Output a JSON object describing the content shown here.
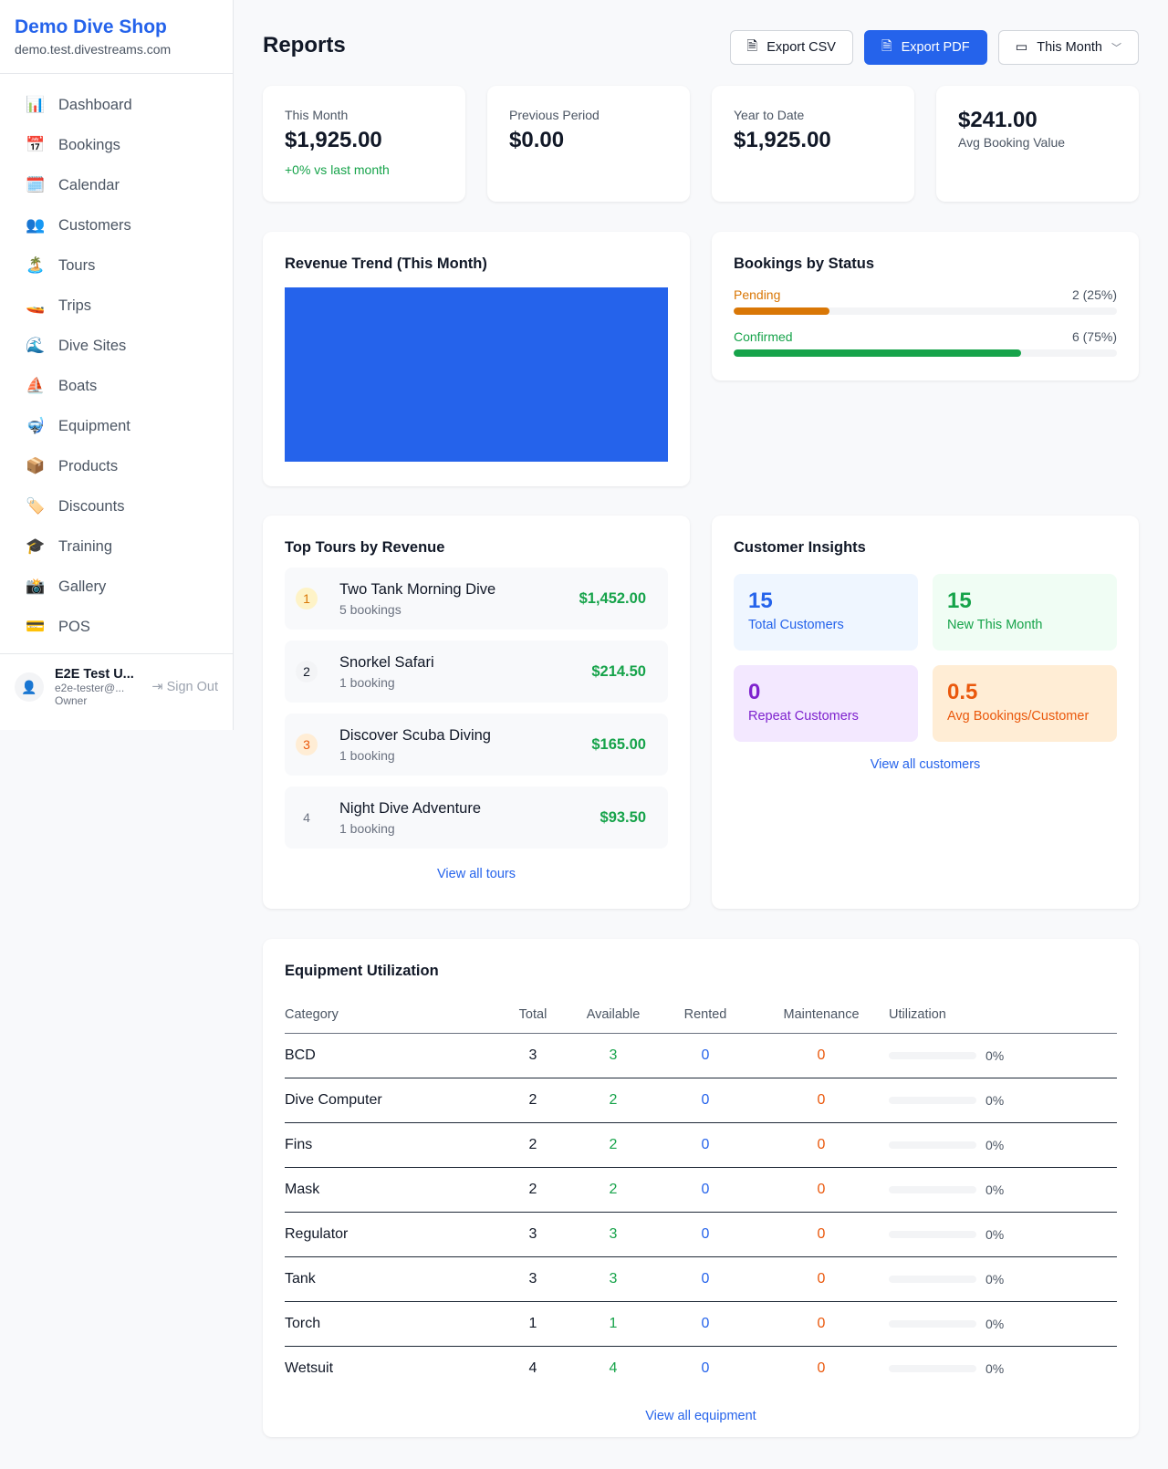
{
  "sidebar": {
    "shop_name": "Demo Dive Shop",
    "shop_domain": "demo.test.divestreams.com",
    "items": [
      {
        "label": "Dashboard",
        "icon": "📊"
      },
      {
        "label": "Bookings",
        "icon": "📅"
      },
      {
        "label": "Calendar",
        "icon": "🗓️"
      },
      {
        "label": "Customers",
        "icon": "👥"
      },
      {
        "label": "Tours",
        "icon": "🏝️"
      },
      {
        "label": "Trips",
        "icon": "🚤"
      },
      {
        "label": "Dive Sites",
        "icon": "🌊"
      },
      {
        "label": "Boats",
        "icon": "⛵"
      },
      {
        "label": "Equipment",
        "icon": "🤿"
      },
      {
        "label": "Products",
        "icon": "📦"
      },
      {
        "label": "Discounts",
        "icon": "🏷️"
      },
      {
        "label": "Training",
        "icon": "🎓"
      },
      {
        "label": "Gallery",
        "icon": "📸"
      },
      {
        "label": "POS",
        "icon": "💳"
      }
    ],
    "user": {
      "name": "E2E Test U...",
      "email": "e2e-tester@...",
      "role": "Owner",
      "sign_out": "Sign Out"
    }
  },
  "header": {
    "title": "Reports",
    "export_csv": "Export CSV",
    "export_pdf": "Export PDF",
    "period": "This Month"
  },
  "stats": [
    {
      "label": "This Month",
      "value": "$1,925.00",
      "change": "+0% vs last month"
    },
    {
      "label": "Previous Period",
      "value": "$0.00"
    },
    {
      "label": "Year to Date",
      "value": "$1,925.00"
    },
    {
      "value": "$241.00",
      "label": "Avg Booking Value"
    }
  ],
  "revenue_trend": {
    "title": "Revenue Trend (This Month)",
    "bar_color": "#2563eb"
  },
  "bookings_status": {
    "title": "Bookings by Status",
    "items": [
      {
        "label": "Pending",
        "count": "2 (25%)",
        "percent": 25,
        "color": "#d97706"
      },
      {
        "label": "Confirmed",
        "count": "6 (75%)",
        "percent": 75,
        "color": "#16a34a"
      }
    ]
  },
  "top_tours": {
    "title": "Top Tours by Revenue",
    "link": "View all tours",
    "items": [
      {
        "rank": "1",
        "name": "Two Tank Morning Dive",
        "bookings": "5 bookings",
        "revenue": "$1,452.00"
      },
      {
        "rank": "2",
        "name": "Snorkel Safari",
        "bookings": "1 booking",
        "revenue": "$214.50"
      },
      {
        "rank": "3",
        "name": "Discover Scuba Diving",
        "bookings": "1 booking",
        "revenue": "$165.00"
      },
      {
        "rank": "4",
        "name": "Night Dive Adventure",
        "bookings": "1 booking",
        "revenue": "$93.50"
      }
    ]
  },
  "customer_insights": {
    "title": "Customer Insights",
    "link": "View all customers",
    "items": [
      {
        "value": "15",
        "label": "Total Customers"
      },
      {
        "value": "15",
        "label": "New This Month"
      },
      {
        "value": "0",
        "label": "Repeat Customers"
      },
      {
        "value": "0.5",
        "label": "Avg Bookings/Customer"
      }
    ]
  },
  "equipment": {
    "title": "Equipment Utilization",
    "link": "View all equipment",
    "columns": [
      "Category",
      "Total",
      "Available",
      "Rented",
      "Maintenance",
      "Utilization"
    ],
    "rows": [
      {
        "category": "BCD",
        "total": "3",
        "available": "3",
        "rented": "0",
        "maintenance": "0",
        "utilization": "0%"
      },
      {
        "category": "Dive Computer",
        "total": "2",
        "available": "2",
        "rented": "0",
        "maintenance": "0",
        "utilization": "0%"
      },
      {
        "category": "Fins",
        "total": "2",
        "available": "2",
        "rented": "0",
        "maintenance": "0",
        "utilization": "0%"
      },
      {
        "category": "Mask",
        "total": "2",
        "available": "2",
        "rented": "0",
        "maintenance": "0",
        "utilization": "0%"
      },
      {
        "category": "Regulator",
        "total": "3",
        "available": "3",
        "rented": "0",
        "maintenance": "0",
        "utilization": "0%"
      },
      {
        "category": "Tank",
        "total": "3",
        "available": "3",
        "rented": "0",
        "maintenance": "0",
        "utilization": "0%"
      },
      {
        "category": "Torch",
        "total": "1",
        "available": "1",
        "rented": "0",
        "maintenance": "0",
        "utilization": "0%"
      },
      {
        "category": "Wetsuit",
        "total": "4",
        "available": "4",
        "rented": "0",
        "maintenance": "0",
        "utilization": "0%"
      }
    ]
  }
}
